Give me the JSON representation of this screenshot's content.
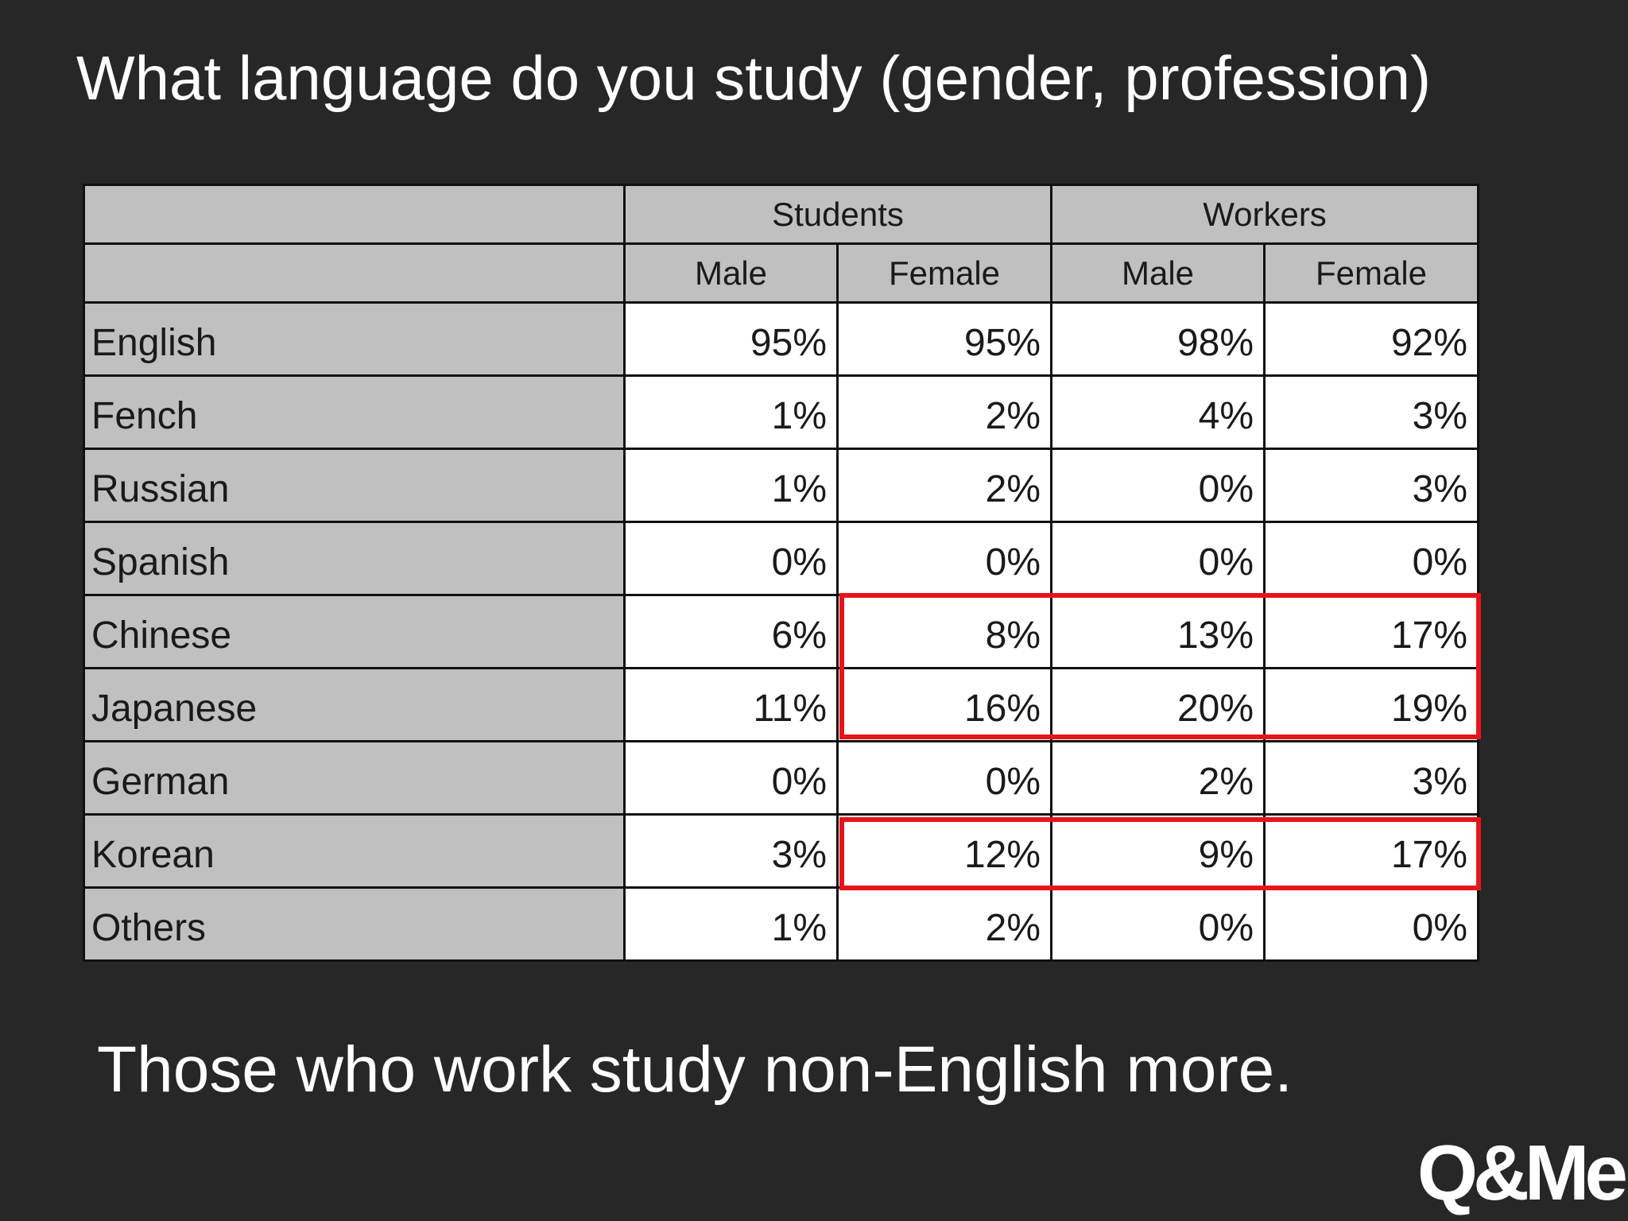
{
  "title": "What language do you study (gender, profession)",
  "table": {
    "group_headers": [
      "",
      "Students",
      "Workers"
    ],
    "sub_headers": [
      "",
      "Male",
      "Female",
      "Male",
      "Female"
    ],
    "rows": [
      {
        "language": "English",
        "values": [
          "95%",
          "95%",
          "98%",
          "92%"
        ]
      },
      {
        "language": "Fench",
        "values": [
          "1%",
          "2%",
          "4%",
          "3%"
        ]
      },
      {
        "language": "Russian",
        "values": [
          "1%",
          "2%",
          "0%",
          "3%"
        ]
      },
      {
        "language": "Spanish",
        "values": [
          "0%",
          "0%",
          "0%",
          "0%"
        ]
      },
      {
        "language": "Chinese",
        "values": [
          "6%",
          "8%",
          "13%",
          "17%"
        ]
      },
      {
        "language": "Japanese",
        "values": [
          "11%",
          "16%",
          "20%",
          "19%"
        ]
      },
      {
        "language": "German",
        "values": [
          "0%",
          "0%",
          "2%",
          "3%"
        ]
      },
      {
        "language": "Korean",
        "values": [
          "3%",
          "12%",
          "9%",
          "17%"
        ]
      },
      {
        "language": "Others",
        "values": [
          "1%",
          "2%",
          "0%",
          "0%"
        ]
      }
    ]
  },
  "highlight_color": "#e8141b",
  "footnote": "Those who work study non-English more.",
  "logo": "Q&Me"
}
